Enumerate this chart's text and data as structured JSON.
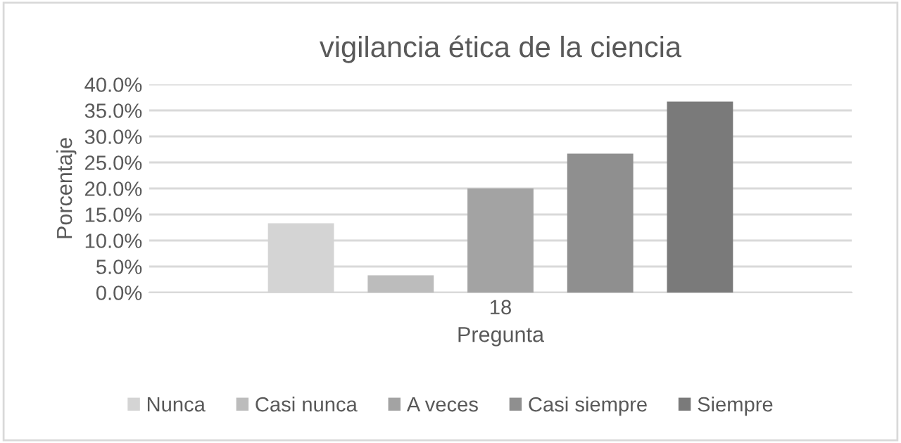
{
  "chart_data": {
    "type": "bar",
    "title": "vigilancia ética de la ciencia",
    "xlabel": "Pregunta",
    "ylabel": "Porcentaje",
    "categories": [
      "18"
    ],
    "series": [
      {
        "name": "Nunca",
        "color": "#d4d4d4",
        "values": [
          13.3
        ]
      },
      {
        "name": "Casi nunca",
        "color": "#bcbcbc",
        "values": [
          3.3
        ]
      },
      {
        "name": "A veces",
        "color": "#a3a3a3",
        "values": [
          20.0
        ]
      },
      {
        "name": "Casi siempre",
        "color": "#8f8f8f",
        "values": [
          26.7
        ]
      },
      {
        "name": "Siempre",
        "color": "#7a7a7a",
        "values": [
          36.7
        ]
      }
    ],
    "ylim": [
      0,
      40
    ],
    "yticks": [
      {
        "value": 0,
        "label": "0.0%"
      },
      {
        "value": 5,
        "label": "5.0%"
      },
      {
        "value": 10,
        "label": "10.0%"
      },
      {
        "value": 15,
        "label": "15.0%"
      },
      {
        "value": 20,
        "label": "20.0%"
      },
      {
        "value": 25,
        "label": "25.0%"
      },
      {
        "value": 30,
        "label": "30.0%"
      },
      {
        "value": 35,
        "label": "35.0%"
      },
      {
        "value": 40,
        "label": "40.0%"
      }
    ],
    "grid": "y",
    "legend": "bottom"
  }
}
